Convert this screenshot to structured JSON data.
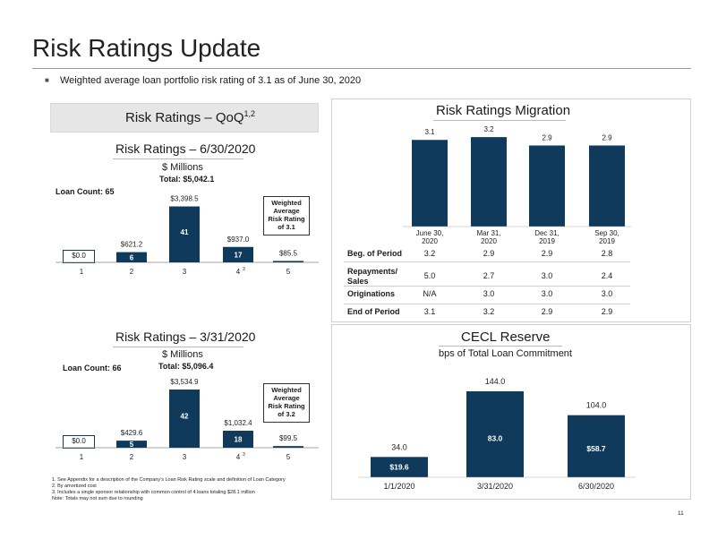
{
  "page": {
    "title": "Risk Ratings Update",
    "bullet": "Weighted average loan portfolio risk rating of 3.1 as of June 30, 2020",
    "qoq_label": "Risk Ratings – QoQ",
    "qoq_sup": "1,2",
    "page_number": "11"
  },
  "footnotes": [
    "1. See Appendix for a description of the Company’s Loan Risk Rating scale and definition of Loan Category",
    "2. By amortized cost",
    "3. Includes a single sponsor relationship with common control of 4 loans totaling $28.1 million",
    "Note: Totals may not sum due to rounding"
  ],
  "chart_data": [
    {
      "type": "bar",
      "title": "Risk Ratings – 6/30/2020",
      "subtitle": "$ Millions",
      "total": "Total: $5,042.1",
      "loan_count": "Loan Count: 65",
      "categories": [
        "1",
        "2",
        "3",
        "4",
        "5"
      ],
      "category_sup": [
        "",
        "",
        "",
        "3",
        ""
      ],
      "values": [
        0.0,
        621.2,
        3398.5,
        937.0,
        85.5
      ],
      "value_labels": [
        "$0.0",
        "$621.2",
        "$3,398.5",
        "$937.0",
        "$85.5"
      ],
      "loan_counts": [
        "",
        "6",
        "41",
        "17",
        ""
      ],
      "callout": [
        "Weighted",
        "Average",
        "Risk Rating",
        "of 3.1"
      ],
      "ylim": [
        0,
        3700
      ],
      "color": "#0f3a5c"
    },
    {
      "type": "bar",
      "title": "Risk Ratings – 3/31/2020",
      "subtitle": "$ Millions",
      "total": "Total: $5,096.4",
      "loan_count": "Loan Count: 66",
      "categories": [
        "1",
        "2",
        "3",
        "4",
        "5"
      ],
      "category_sup": [
        "",
        "",
        "",
        "3",
        ""
      ],
      "values": [
        0.0,
        429.6,
        3534.9,
        1032.4,
        99.5
      ],
      "value_labels": [
        "$0.0",
        "$429.6",
        "$3,534.9",
        "$1,032.4",
        "$99.5"
      ],
      "loan_counts": [
        "",
        "5",
        "42",
        "18",
        ""
      ],
      "callout": [
        "Weighted",
        "Average",
        "Risk Rating",
        "of 3.2"
      ],
      "ylim": [
        0,
        3700
      ],
      "color": "#0f3a5c"
    },
    {
      "type": "bar",
      "title": "Risk Ratings Migration",
      "categories": [
        [
          "June 30,",
          "2020"
        ],
        [
          "Mar 31,",
          "2020"
        ],
        [
          "Dec 31,",
          "2019"
        ],
        [
          "Sep 30,",
          "2019"
        ]
      ],
      "values": [
        3.1,
        3.2,
        2.9,
        2.9
      ],
      "value_labels": [
        "3.1",
        "3.2",
        "2.9",
        "2.9"
      ],
      "ylim": [
        0,
        3.3
      ],
      "color": "#0f3a5c",
      "table": {
        "rows": [
          {
            "label": "Beg. of Period",
            "values": [
              "3.2",
              "2.9",
              "2.9",
              "2.8"
            ]
          },
          {
            "label": "Repayments/ Sales",
            "label_lines": [
              "Repayments/",
              "Sales"
            ],
            "values": [
              "5.0",
              "2.7",
              "3.0",
              "2.4"
            ]
          },
          {
            "label": "Originations",
            "values": [
              "N/A",
              "3.0",
              "3.0",
              "3.0"
            ]
          },
          {
            "label": "End of Period",
            "values": [
              "3.1",
              "3.2",
              "2.9",
              "2.9"
            ]
          }
        ]
      }
    },
    {
      "type": "bar",
      "title": "CECL Reserve",
      "subtitle": "bps of Total Loan Commitment",
      "categories": [
        "1/1/2020",
        "3/31/2020",
        "6/30/2020"
      ],
      "values": [
        34.0,
        144.0,
        104.0
      ],
      "value_labels": [
        "34.0",
        "144.0",
        "104.0"
      ],
      "inner_labels": [
        "$19.6",
        "83.0",
        "$58.7"
      ],
      "ylim": [
        0,
        150
      ],
      "color": "#0f3a5c"
    }
  ]
}
